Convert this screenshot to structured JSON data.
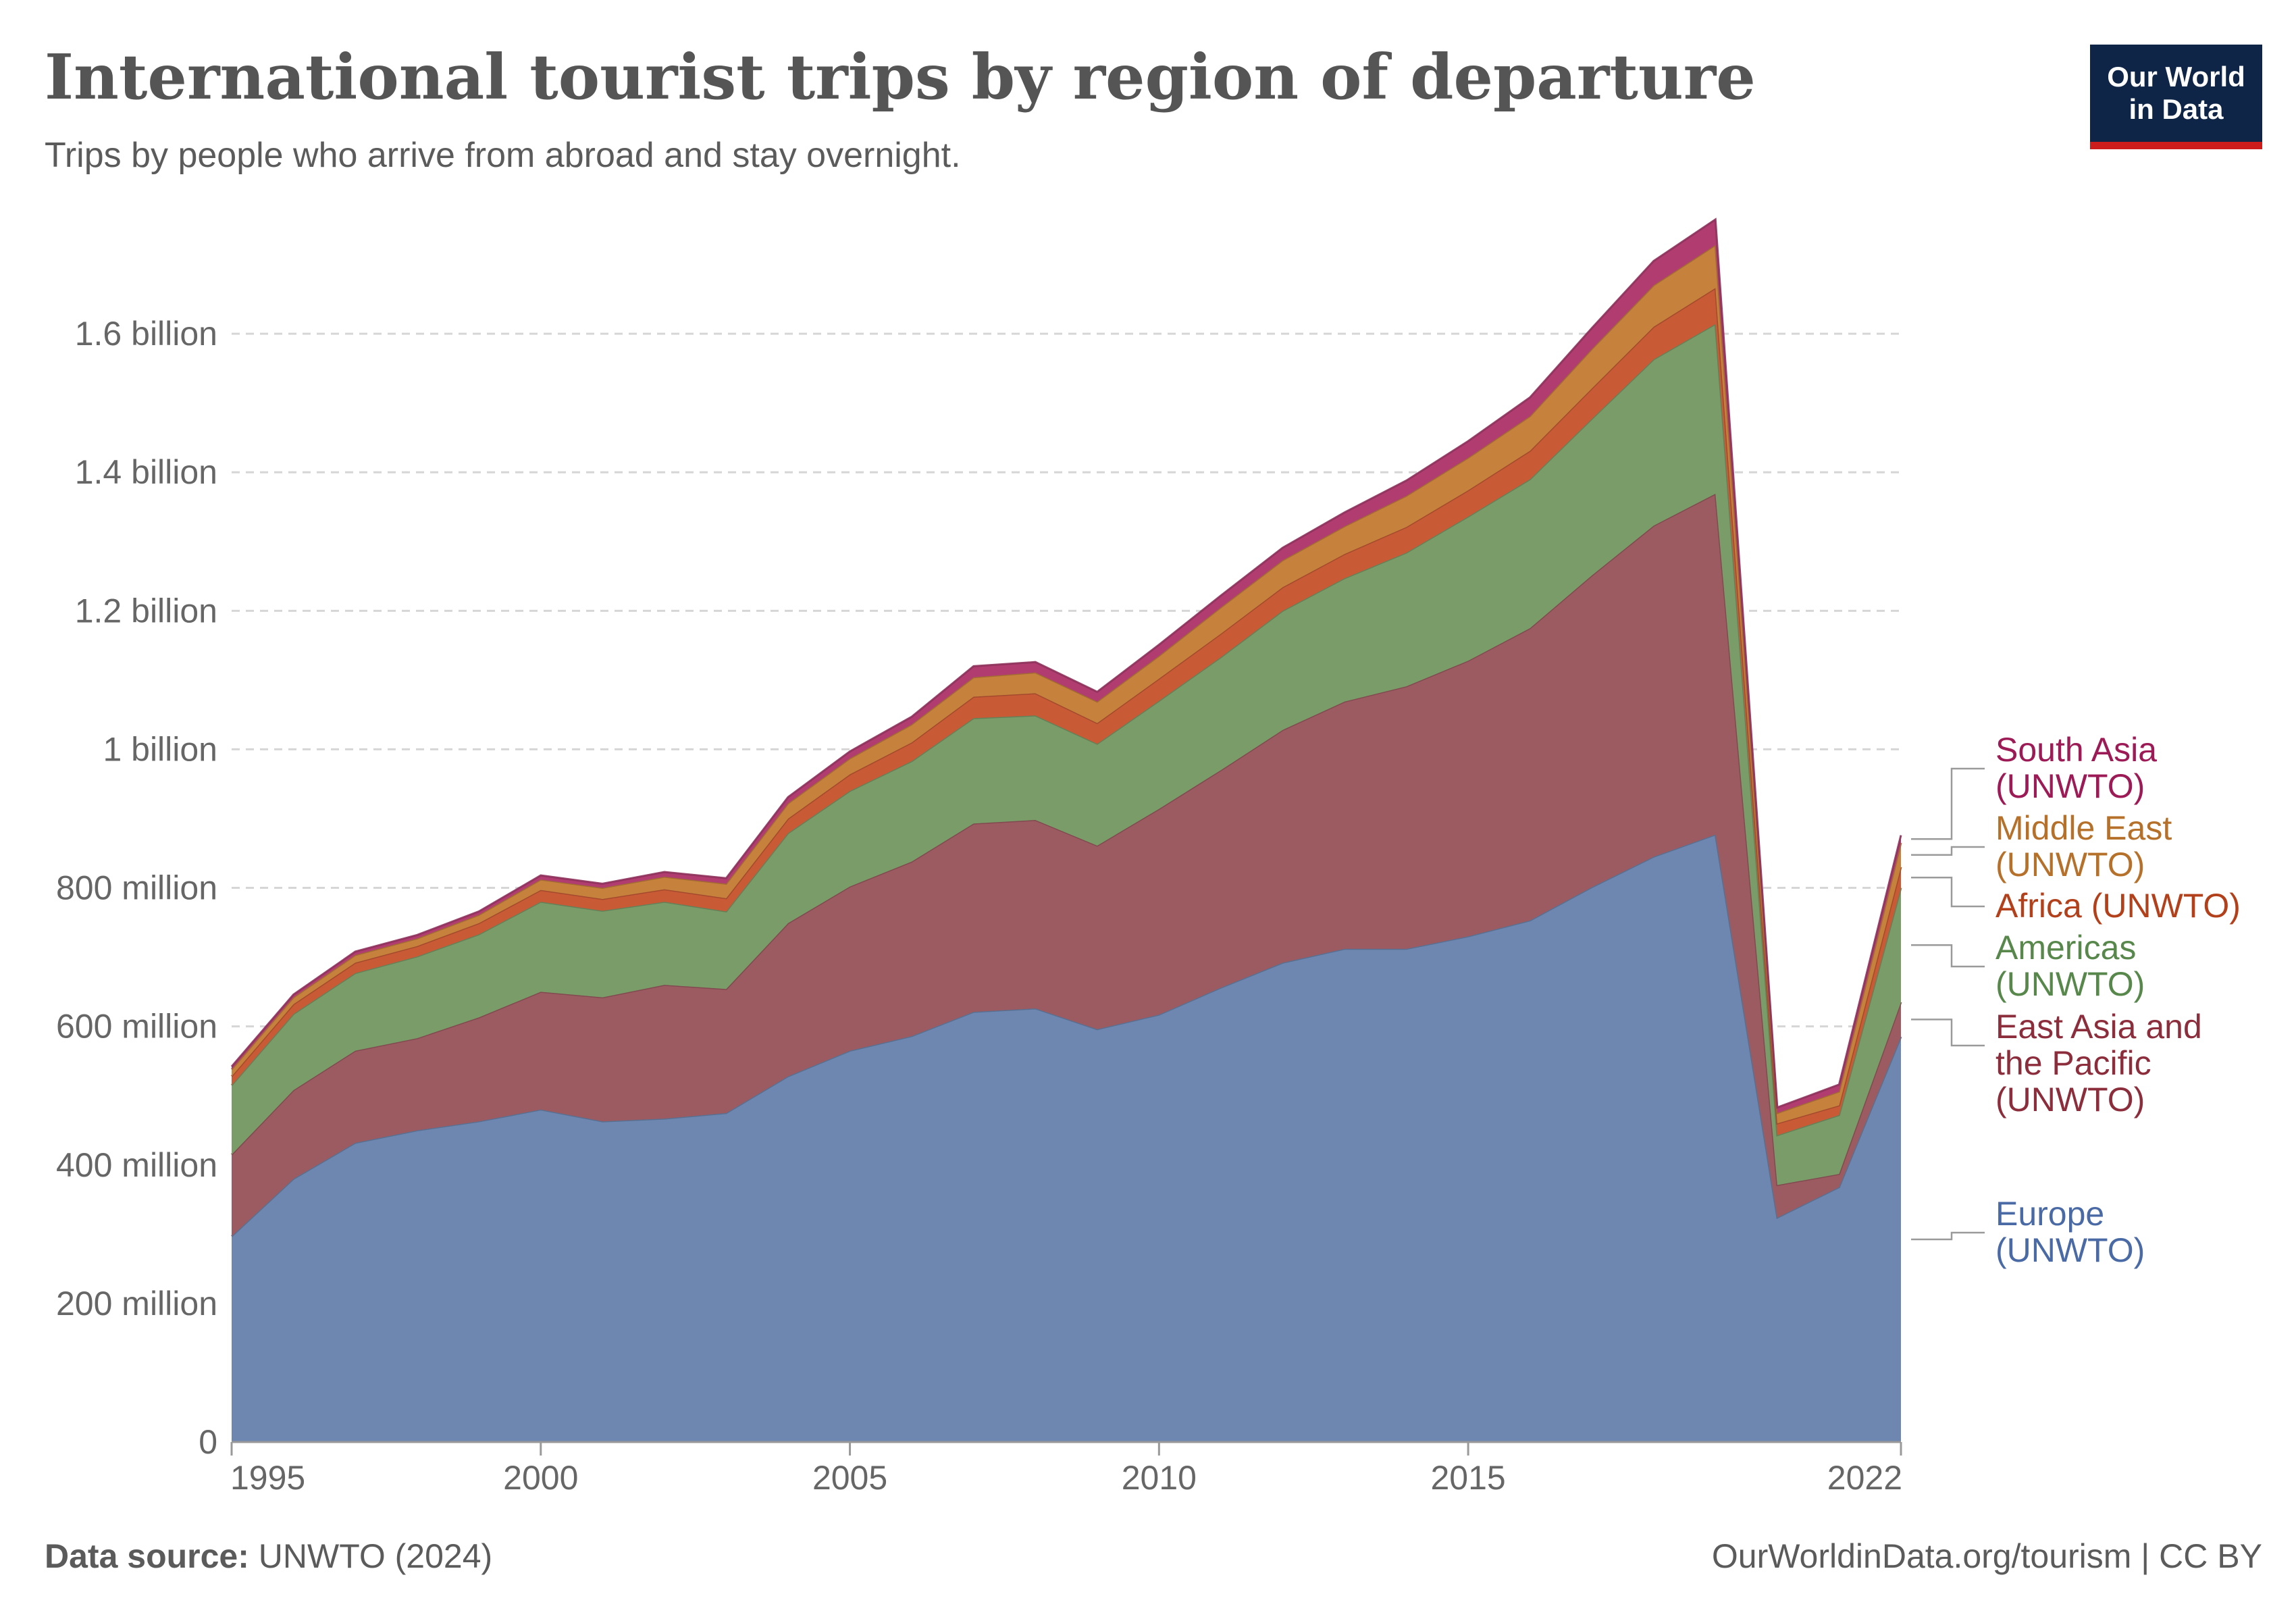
{
  "header": {
    "title": "International tourist trips by region of departure",
    "subtitle": "Trips by people who arrive from abroad and stay overnight.",
    "logo_line1": "Our World",
    "logo_line2": "in Data"
  },
  "footer": {
    "source_label": "Data source:",
    "source_value": "UNWTO (2024)",
    "right_text": "OurWorldinData.org/tourism | CC BY"
  },
  "chart_data": {
    "type": "area",
    "stacked": true,
    "title": "International tourist trips by region of departure",
    "subtitle": "Trips by people who arrive from abroad and stay overnight.",
    "x": [
      1995,
      1996,
      1997,
      1998,
      1999,
      2000,
      2001,
      2002,
      2003,
      2004,
      2005,
      2006,
      2007,
      2008,
      2009,
      2010,
      2011,
      2012,
      2013,
      2014,
      2015,
      2016,
      2017,
      2018,
      2019,
      2020,
      2021,
      2022
    ],
    "xlim": [
      1995,
      2022
    ],
    "xticks": [
      "1995",
      "2000",
      "2005",
      "2010",
      "2015",
      "2022"
    ],
    "ylim": [
      0,
      1760000000
    ],
    "yticks": [
      {
        "value": 0,
        "label": "0"
      },
      {
        "value": 200000000,
        "label": "200 million"
      },
      {
        "value": 400000000,
        "label": "400 million"
      },
      {
        "value": 600000000,
        "label": "600 million"
      },
      {
        "value": 800000000,
        "label": "800 million"
      },
      {
        "value": 1000000000,
        "label": "1 billion"
      },
      {
        "value": 1200000000,
        "label": "1.2 billion"
      },
      {
        "value": 1400000000,
        "label": "1.4 billion"
      },
      {
        "value": 1600000000,
        "label": "1.6 billion"
      }
    ],
    "grid": "horizontal-dashed",
    "legend_position": "right",
    "series": [
      {
        "name": "Europe (UNWTO)",
        "label_lines": [
          "Europe",
          "(UNWTO)"
        ],
        "color": "#6d87b0",
        "text_color": "#4a6aa5",
        "values": [
          297,
          380,
          432,
          450,
          463,
          480,
          463,
          467,
          475,
          528,
          565,
          586,
          621,
          626,
          596,
          617,
          656,
          692,
          712,
          712,
          730,
          753,
          801,
          845,
          877,
          324,
          368,
          585
        ]
      },
      {
        "name": "East Asia and the Pacific (UNWTO)",
        "label_lines": [
          "East Asia and",
          "the Pacific",
          "(UNWTO)"
        ],
        "color": "#9c5a61",
        "text_color": "#8c2d3c",
        "values": [
          118,
          128,
          133,
          133,
          150,
          170,
          179,
          193,
          179,
          221,
          237,
          252,
          272,
          272,
          265,
          297,
          314,
          336,
          357,
          379,
          398,
          422,
          450,
          478,
          492,
          47,
          19,
          50
        ]
      },
      {
        "name": "Americas (UNWTO)",
        "label_lines": [
          "Americas",
          "(UNWTO)"
        ],
        "color": "#7a9c69",
        "text_color": "#57874a",
        "values": [
          100,
          110,
          112,
          118,
          120,
          130,
          125,
          120,
          112,
          130,
          138,
          145,
          152,
          151,
          147,
          156,
          163,
          172,
          178,
          193,
          208,
          215,
          226,
          240,
          245,
          72,
          85,
          165
        ]
      },
      {
        "name": "Africa (UNWTO)",
        "label_lines": [
          "Africa (UNWTO)"
        ],
        "color": "#c85a35",
        "text_color": "#b2401b",
        "values": [
          13,
          14,
          15,
          15,
          16,
          17,
          17,
          18,
          19,
          21,
          24,
          27,
          31,
          32,
          30,
          32,
          34,
          34,
          35,
          37,
          38,
          41,
          44,
          47,
          52,
          17,
          14,
          30
        ]
      },
      {
        "name": "Middle East (UNWTO)",
        "label_lines": [
          "Middle East",
          "(UNWTO)"
        ],
        "color": "#c6823c",
        "text_color": "#b5702a",
        "values": [
          10,
          10,
          11,
          11,
          12,
          15,
          16,
          18,
          21,
          22,
          23,
          26,
          28,
          30,
          31,
          33,
          38,
          39,
          40,
          45,
          47,
          50,
          57,
          60,
          62,
          15,
          20,
          35
        ]
      },
      {
        "name": "South Asia (UNWTO)",
        "label_lines": [
          "South Asia",
          "(UNWTO)"
        ],
        "color": "#b03c70",
        "text_color": "#9c1a55",
        "values": [
          4,
          4,
          5,
          5,
          5,
          6,
          6,
          7,
          8,
          9,
          10,
          11,
          16,
          15,
          14,
          16,
          17,
          18,
          20,
          22,
          24,
          27,
          30,
          35,
          37,
          8,
          10,
          11
        ]
      }
    ],
    "units": "millions of trips"
  }
}
